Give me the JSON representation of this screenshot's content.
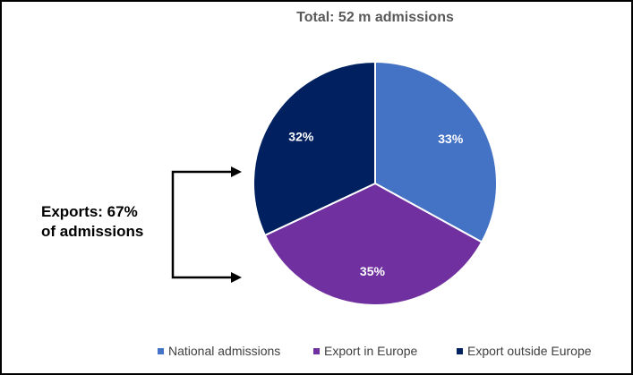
{
  "chart_data": {
    "type": "pie",
    "title": "Total: 52 m admissions",
    "categories": [
      "National admissions",
      "Export in Europe",
      "Export outside Europe"
    ],
    "values": [
      33,
      35,
      32
    ],
    "labels": [
      "33%",
      "35%",
      "32%"
    ],
    "colors": [
      "#4472C4",
      "#7030A0",
      "#002060"
    ],
    "start_angle_deg": 0,
    "direction": "clockwise",
    "legend_position": "bottom",
    "annotation": {
      "lines": [
        "Exports: 67%",
        "of admissions"
      ],
      "bracket_targets": [
        "Export outside Europe",
        "Export in Europe"
      ]
    }
  }
}
